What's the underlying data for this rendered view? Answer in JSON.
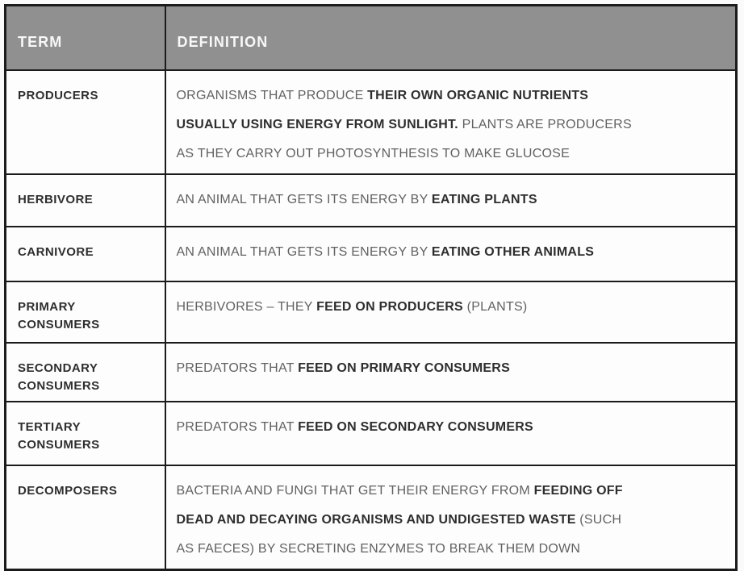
{
  "table": {
    "header": {
      "term": "TERM",
      "definition": "DEFINITION",
      "background": "#909090",
      "text_color": "#f8f8f8"
    },
    "colors": {
      "border": "#1b1b1b",
      "term_text": "#2e2e2e",
      "definition_text": "#616161",
      "definition_bold_text": "#2e2e2e",
      "cell_background": "#fdfdfd"
    },
    "rows": [
      {
        "term": "PRODUCERS",
        "definition_lines": [
          [
            {
              "text": "ORGANISMS THAT PRODUCE ",
              "bold": false
            },
            {
              "text": "THEIR OWN ORGANIC NUTRIENTS",
              "bold": true
            }
          ],
          [
            {
              "text": "USUALLY USING ENERGY FROM SUNLIGHT.",
              "bold": true
            },
            {
              "text": " PLANTS ARE PRODUCERS",
              "bold": false
            }
          ],
          [
            {
              "text": "AS THEY CARRY OUT PHOTOSYNTHESIS TO MAKE GLUCOSE",
              "bold": false
            }
          ]
        ]
      },
      {
        "term": "HERBIVORE",
        "definition_lines": [
          [
            {
              "text": "AN ANIMAL THAT GETS ITS ENERGY BY ",
              "bold": false
            },
            {
              "text": "EATING PLANTS",
              "bold": true
            }
          ]
        ]
      },
      {
        "term": "CARNIVORE",
        "definition_lines": [
          [
            {
              "text": "AN ANIMAL THAT GETS ITS ENERGY BY ",
              "bold": false
            },
            {
              "text": "EATING OTHER ANIMALS",
              "bold": true
            }
          ]
        ]
      },
      {
        "term": "PRIMARY CONSUMERS",
        "definition_lines": [
          [
            {
              "text": "HERBIVORES – THEY ",
              "bold": false
            },
            {
              "text": "FEED ON PRODUCERS",
              "bold": true
            },
            {
              "text": " (PLANTS)",
              "bold": false
            }
          ]
        ]
      },
      {
        "term": "SECONDARY CONSUMERS",
        "definition_lines": [
          [
            {
              "text": "PREDATORS THAT ",
              "bold": false
            },
            {
              "text": "FEED ON PRIMARY CONSUMERS",
              "bold": true
            }
          ]
        ]
      },
      {
        "term": "TERTIARY CONSUMERS",
        "definition_lines": [
          [
            {
              "text": "PREDATORS THAT ",
              "bold": false
            },
            {
              "text": "FEED ON SECONDARY CONSUMERS",
              "bold": true
            }
          ]
        ]
      },
      {
        "term": "DECOMPOSERS",
        "definition_lines": [
          [
            {
              "text": "BACTERIA AND FUNGI THAT GET THEIR ENERGY FROM ",
              "bold": false
            },
            {
              "text": "FEEDING OFF",
              "bold": true
            }
          ],
          [
            {
              "text": "DEAD AND DECAYING ORGANISMS AND UNDIGESTED WASTE",
              "bold": true
            },
            {
              "text": " (SUCH",
              "bold": false
            }
          ],
          [
            {
              "text": "AS FAECES) BY SECRETING ENZYMES TO BREAK THEM DOWN",
              "bold": false
            }
          ]
        ]
      }
    ]
  }
}
